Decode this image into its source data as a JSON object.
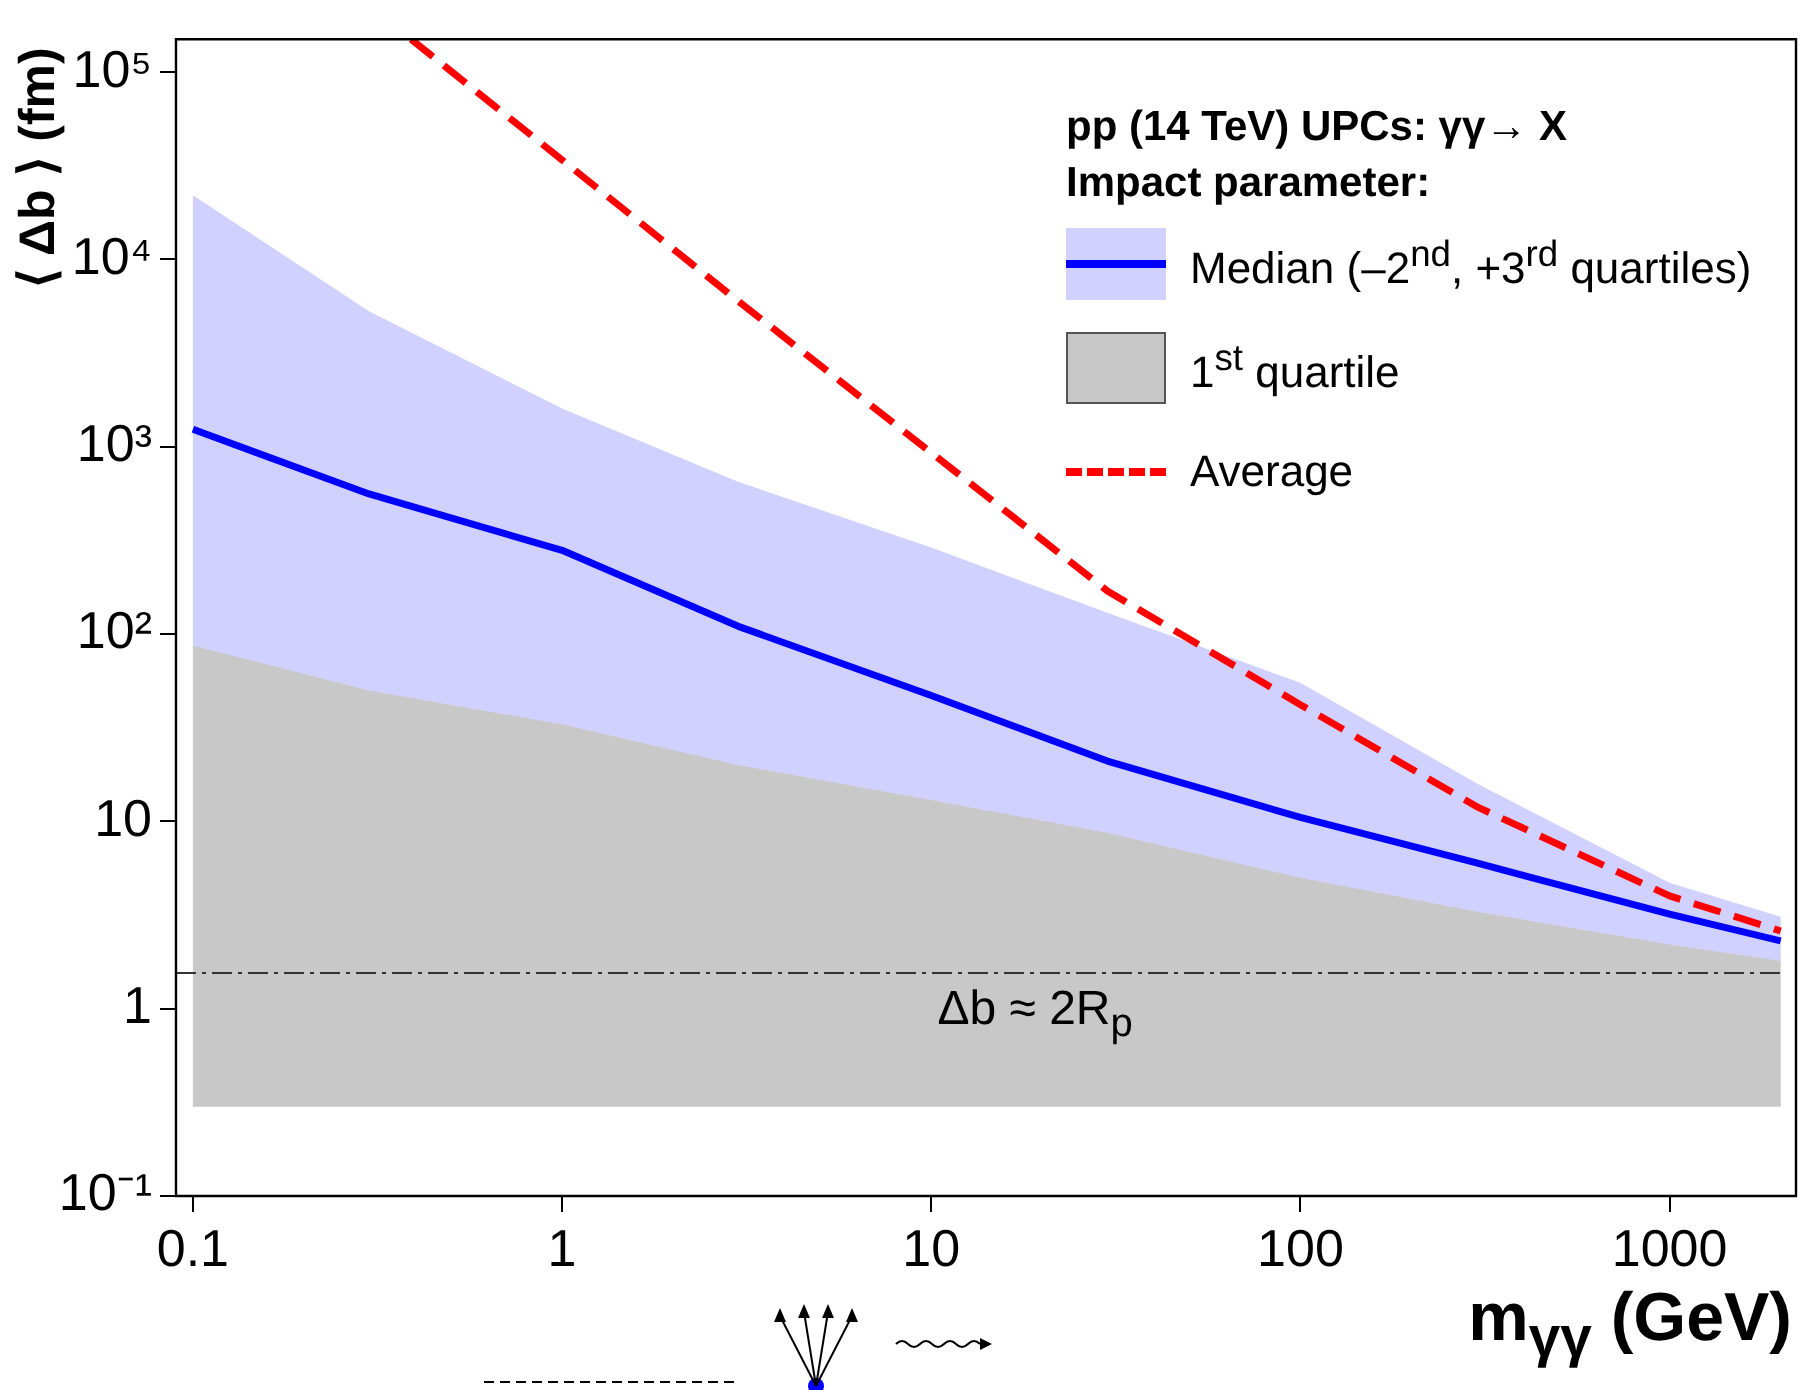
{
  "chart_data": {
    "type": "line",
    "xlabel": "m$_{γγ}$ (GeV)",
    "ylabel": "⟨ Δb ⟩ (fm)",
    "legend_title": "pp (14 TeV) UPCs: γγ→ X\nImpact parameter:",
    "log": "xy",
    "grid": false,
    "legend": "top right",
    "xlim": [
      0.09,
      2200
    ],
    "ylim": [
      0.1,
      150000
    ],
    "xticks": [
      0.1,
      1,
      10,
      100,
      1000
    ],
    "yticks": [
      {
        "value": 0.1,
        "label": "10⁻¹"
      },
      1,
      10,
      {
        "value": 100,
        "label": "10²"
      },
      {
        "value": 1000,
        "label": "10³"
      },
      {
        "value": 10000,
        "label": "10⁴"
      },
      {
        "value": 100000,
        "label": "10⁵"
      }
    ],
    "x": [
      0.1,
      0.3,
      1,
      3,
      10,
      30,
      100,
      300,
      1000,
      2000
    ],
    "series": [
      {
        "name": "Median (–2$^{nd}$, +3$^{rd}$ quartiles)",
        "type": "line",
        "color": "#0000ff",
        "line_style": "solid",
        "values": [
          1240,
          560,
          280,
          110,
          47,
          21,
          10.5,
          6,
          3.2,
          2.3
        ],
        "lower": [
          87,
          50,
          33,
          20,
          13,
          8.7,
          5,
          3.3,
          2.2,
          1.8
        ],
        "upper": [
          22000,
          5300,
          1600,
          650,
          290,
          130,
          55,
          16,
          4.7,
          3.1
        ]
      },
      {
        "name": "1$^{st}$ quartile",
        "type": "area",
        "color": "#c8c8c8",
        "values": [
          null,
          null,
          null,
          null,
          null,
          null,
          null,
          null,
          null,
          null
        ],
        "lower": [
          0.3,
          0.3,
          0.3,
          0.3,
          0.3,
          0.3,
          0.3,
          0.3,
          0.3,
          0.3
        ],
        "upper": [
          87,
          50,
          33,
          20,
          13,
          8.7,
          5,
          3.3,
          2.2,
          1.8
        ]
      },
      {
        "name": "Average",
        "type": "line",
        "color": "#ff0000",
        "line_style": "dashed",
        "x": [
          0.39,
          1,
          3,
          10,
          30,
          100,
          300,
          1000,
          2000
        ],
        "values": [
          150000,
          34000,
          6000,
          930,
          170,
          42,
          12,
          4,
          2.6
        ]
      }
    ],
    "ref_lines": [
      {
        "axis": "y",
        "value": 1.55,
        "label": "Δb ≈ 2R$_{p}$",
        "color": "#333333",
        "line_style": "dashed"
      }
    ]
  }
}
